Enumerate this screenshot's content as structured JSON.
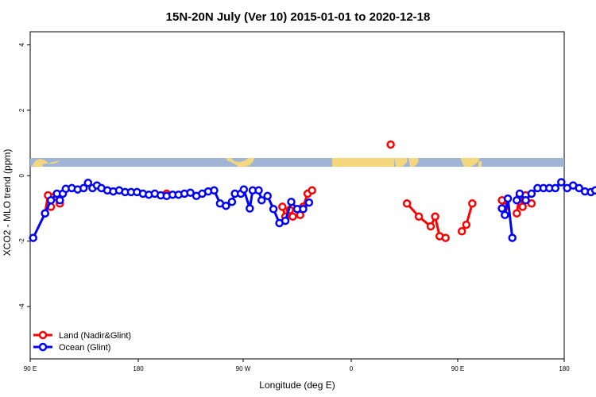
{
  "chart_data": {
    "type": "line",
    "title": "15N-20N July (Ver 10)   2015-01-01 to 2020-12-18",
    "xlabel": "Longitude (deg E)",
    "ylabel": "XCO2 - MLO trend (ppm)",
    "xlim": [
      90,
      450
    ],
    "ylim": [
      -5.6,
      4.4
    ],
    "x_ticks": [
      {
        "value": 90,
        "label": "90 E"
      },
      {
        "value": 180,
        "label": "180"
      },
      {
        "value": 270,
        "label": "90 W"
      },
      {
        "value": 360,
        "label": "0"
      },
      {
        "value": 450,
        "label": "90 E"
      },
      {
        "value": 540,
        "label": "180"
      }
    ],
    "y_ticks": [
      {
        "value": -4,
        "label": "-4"
      },
      {
        "value": -2,
        "label": "-2"
      },
      {
        "value": 0,
        "label": "0"
      },
      {
        "value": 2,
        "label": "2"
      },
      {
        "value": 4,
        "label": "4"
      }
    ],
    "legend": {
      "position": "bottom-left"
    },
    "series": [
      {
        "name": "Land (Nadir&Glint)",
        "color": "#ff0000",
        "segments": [
          [
            [
              100,
              -1.15
            ],
            [
              102,
              -0.6
            ],
            [
              104,
              -0.95
            ],
            [
              106,
              -0.65
            ],
            [
              110,
              -0.85
            ]
          ],
          [
            [
              182,
              -0.55
            ]
          ],
          [
            [
              260,
              -0.95
            ],
            [
              262,
              -1.25
            ],
            [
              265,
              -1.05
            ],
            [
              267,
              -1.25
            ],
            [
              272,
              -1.2
            ],
            [
              274,
              -0.95
            ],
            [
              277,
              -0.55
            ],
            [
              280,
              -0.45
            ]
          ],
          [
            [
              333,
              0.95
            ]
          ],
          [
            [
              344,
              -0.85
            ],
            [
              352,
              -1.25
            ],
            [
              360,
              -1.55
            ],
            [
              363,
              -1.25
            ],
            [
              366,
              -1.85
            ],
            [
              370,
              -1.9
            ]
          ],
          [
            [
              381,
              -1.7
            ],
            [
              384,
              -1.5
            ],
            [
              388,
              -0.85
            ]
          ],
          [
            [
              408,
              -0.75
            ],
            [
              410,
              -0.95
            ]
          ],
          [
            [
              418,
              -1.15
            ],
            [
              420,
              -0.6
            ],
            [
              422,
              -0.95
            ],
            [
              424,
              -0.6
            ],
            [
              428,
              -0.85
            ]
          ]
        ]
      },
      {
        "name": "Ocean (Glint)",
        "color": "#0000ff",
        "segments": [
          [
            [
              92,
              -1.9
            ],
            [
              100,
              -1.15
            ],
            [
              104,
              -0.75
            ],
            [
              108,
              -0.55
            ],
            [
              110,
              -0.75
            ],
            [
              112,
              -0.55
            ],
            [
              114,
              -0.4
            ],
            [
              118,
              -0.38
            ],
            [
              122,
              -0.42
            ],
            [
              126,
              -0.38
            ],
            [
              129,
              -0.22
            ],
            [
              132,
              -0.38
            ],
            [
              135,
              -0.3
            ],
            [
              138,
              -0.38
            ],
            [
              142,
              -0.45
            ],
            [
              146,
              -0.48
            ],
            [
              150,
              -0.45
            ],
            [
              154,
              -0.5
            ],
            [
              158,
              -0.5
            ],
            [
              162,
              -0.5
            ],
            [
              166,
              -0.55
            ],
            [
              170,
              -0.58
            ],
            [
              174,
              -0.55
            ],
            [
              178,
              -0.6
            ],
            [
              182,
              -0.62
            ],
            [
              186,
              -0.58
            ],
            [
              190,
              -0.58
            ],
            [
              194,
              -0.55
            ],
            [
              198,
              -0.52
            ],
            [
              202,
              -0.62
            ],
            [
              206,
              -0.55
            ],
            [
              210,
              -0.48
            ],
            [
              214,
              -0.45
            ],
            [
              218,
              -0.85
            ],
            [
              222,
              -0.92
            ],
            [
              226,
              -0.8
            ],
            [
              228,
              -0.55
            ],
            [
              232,
              -0.55
            ],
            [
              234,
              -0.42
            ],
            [
              238,
              -1.0
            ],
            [
              240,
              -0.45
            ],
            [
              244,
              -0.45
            ],
            [
              246,
              -0.75
            ],
            [
              250,
              -0.62
            ],
            [
              254,
              -1.02
            ],
            [
              258,
              -1.45
            ],
            [
              262,
              -1.38
            ],
            [
              266,
              -0.8
            ],
            [
              270,
              -1.02
            ],
            [
              274,
              -1.02
            ],
            [
              278,
              -0.82
            ]
          ],
          [
            [
              418,
              -0.75
            ],
            [
              420,
              -0.55
            ],
            [
              424,
              -0.75
            ],
            [
              428,
              -0.55
            ],
            [
              432,
              -0.38
            ],
            [
              436,
              -0.38
            ],
            [
              440,
              -0.38
            ],
            [
              444,
              -0.38
            ],
            [
              448,
              -0.2
            ],
            [
              452,
              -0.38
            ],
            [
              456,
              -0.3
            ],
            [
              460,
              -0.38
            ],
            [
              464,
              -0.48
            ],
            [
              468,
              -0.5
            ],
            [
              471,
              -0.45
            ]
          ],
          [
            [
              408,
              -1.0
            ],
            [
              410,
              -1.2
            ],
            [
              412,
              -0.7
            ],
            [
              415,
              -1.9
            ]
          ]
        ]
      }
    ]
  }
}
